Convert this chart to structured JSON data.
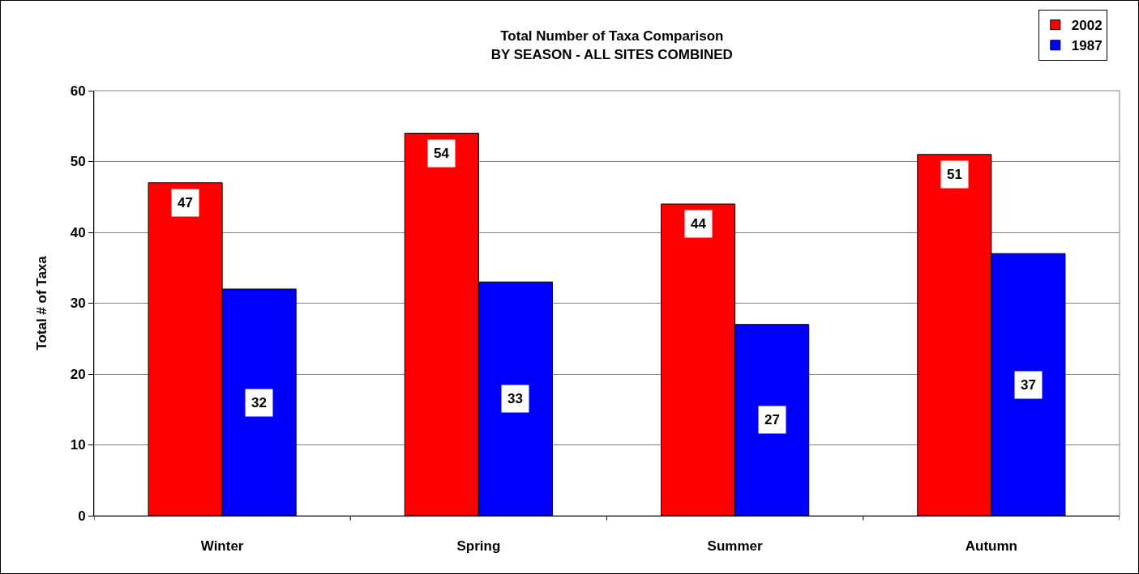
{
  "chart_data": {
    "type": "bar",
    "title": "Total Number of Taxa Comparison",
    "subtitle": "BY SEASON - ALL SITES COMBINED",
    "ylabel": "Total # of Taxa",
    "categories": [
      "Winter",
      "Spring",
      "Summer",
      "Autumn"
    ],
    "series": [
      {
        "name": "2002",
        "color": "#ff0000",
        "values": [
          47,
          54,
          44,
          51
        ]
      },
      {
        "name": "1987",
        "color": "#0000ff",
        "values": [
          32,
          33,
          27,
          37
        ]
      }
    ],
    "ylim": [
      0,
      60
    ],
    "yticks": [
      0,
      10,
      20,
      30,
      40,
      50,
      60
    ],
    "grid": "y",
    "legend": "top right",
    "data_labels": true
  }
}
